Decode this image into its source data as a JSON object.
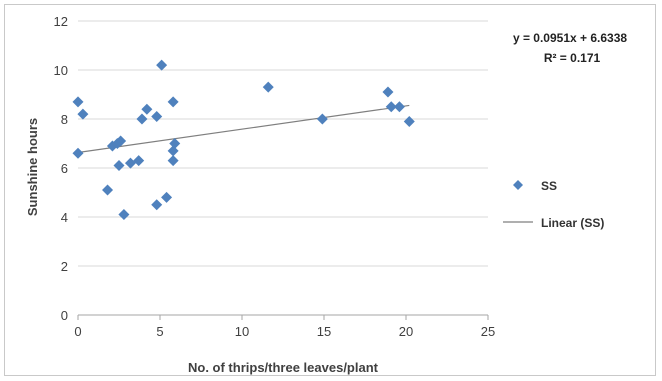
{
  "chart_data": {
    "type": "scatter",
    "xlabel": "No. of thrips/three leaves/plant",
    "ylabel": "Sunshine hours",
    "xlim": [
      0,
      25
    ],
    "ylim": [
      0,
      12
    ],
    "x_ticks": [
      "0",
      "5",
      "10",
      "15",
      "20",
      "25"
    ],
    "y_ticks": [
      "0",
      "2",
      "4",
      "6",
      "8",
      "10",
      "12"
    ],
    "grid": "horizontal",
    "legend_position": "right",
    "series": [
      {
        "name": "SS",
        "color": "#4f81bd",
        "marker": "diamond",
        "points": [
          {
            "x": 0.0,
            "y": 8.7
          },
          {
            "x": 0.3,
            "y": 8.2
          },
          {
            "x": 0.0,
            "y": 6.6
          },
          {
            "x": 1.8,
            "y": 5.1
          },
          {
            "x": 2.1,
            "y": 6.9
          },
          {
            "x": 2.4,
            "y": 7.0
          },
          {
            "x": 2.6,
            "y": 7.1
          },
          {
            "x": 2.5,
            "y": 6.1
          },
          {
            "x": 2.8,
            "y": 4.1
          },
          {
            "x": 3.2,
            "y": 6.2
          },
          {
            "x": 3.7,
            "y": 6.3
          },
          {
            "x": 3.9,
            "y": 8.0
          },
          {
            "x": 4.2,
            "y": 8.4
          },
          {
            "x": 4.8,
            "y": 8.1
          },
          {
            "x": 4.8,
            "y": 4.5
          },
          {
            "x": 5.1,
            "y": 10.2
          },
          {
            "x": 5.4,
            "y": 4.8
          },
          {
            "x": 5.8,
            "y": 8.7
          },
          {
            "x": 5.8,
            "y": 6.7
          },
          {
            "x": 5.8,
            "y": 6.3
          },
          {
            "x": 5.9,
            "y": 7.0
          },
          {
            "x": 11.6,
            "y": 9.3
          },
          {
            "x": 14.9,
            "y": 8.0
          },
          {
            "x": 18.9,
            "y": 9.1
          },
          {
            "x": 19.1,
            "y": 8.5
          },
          {
            "x": 19.6,
            "y": 8.5
          },
          {
            "x": 20.2,
            "y": 7.9
          }
        ]
      }
    ],
    "trendline": {
      "name": "Linear (SS)",
      "slope": 0.0951,
      "intercept": 6.6338,
      "x_range": [
        0,
        20.2
      ],
      "equation": "y = 0.0951x + 6.6338",
      "r_squared": "R² = 0.171",
      "color": "#7f7f7f"
    },
    "legend": [
      {
        "label": "SS",
        "kind": "marker"
      },
      {
        "label": "Linear (SS)",
        "kind": "line"
      }
    ]
  }
}
